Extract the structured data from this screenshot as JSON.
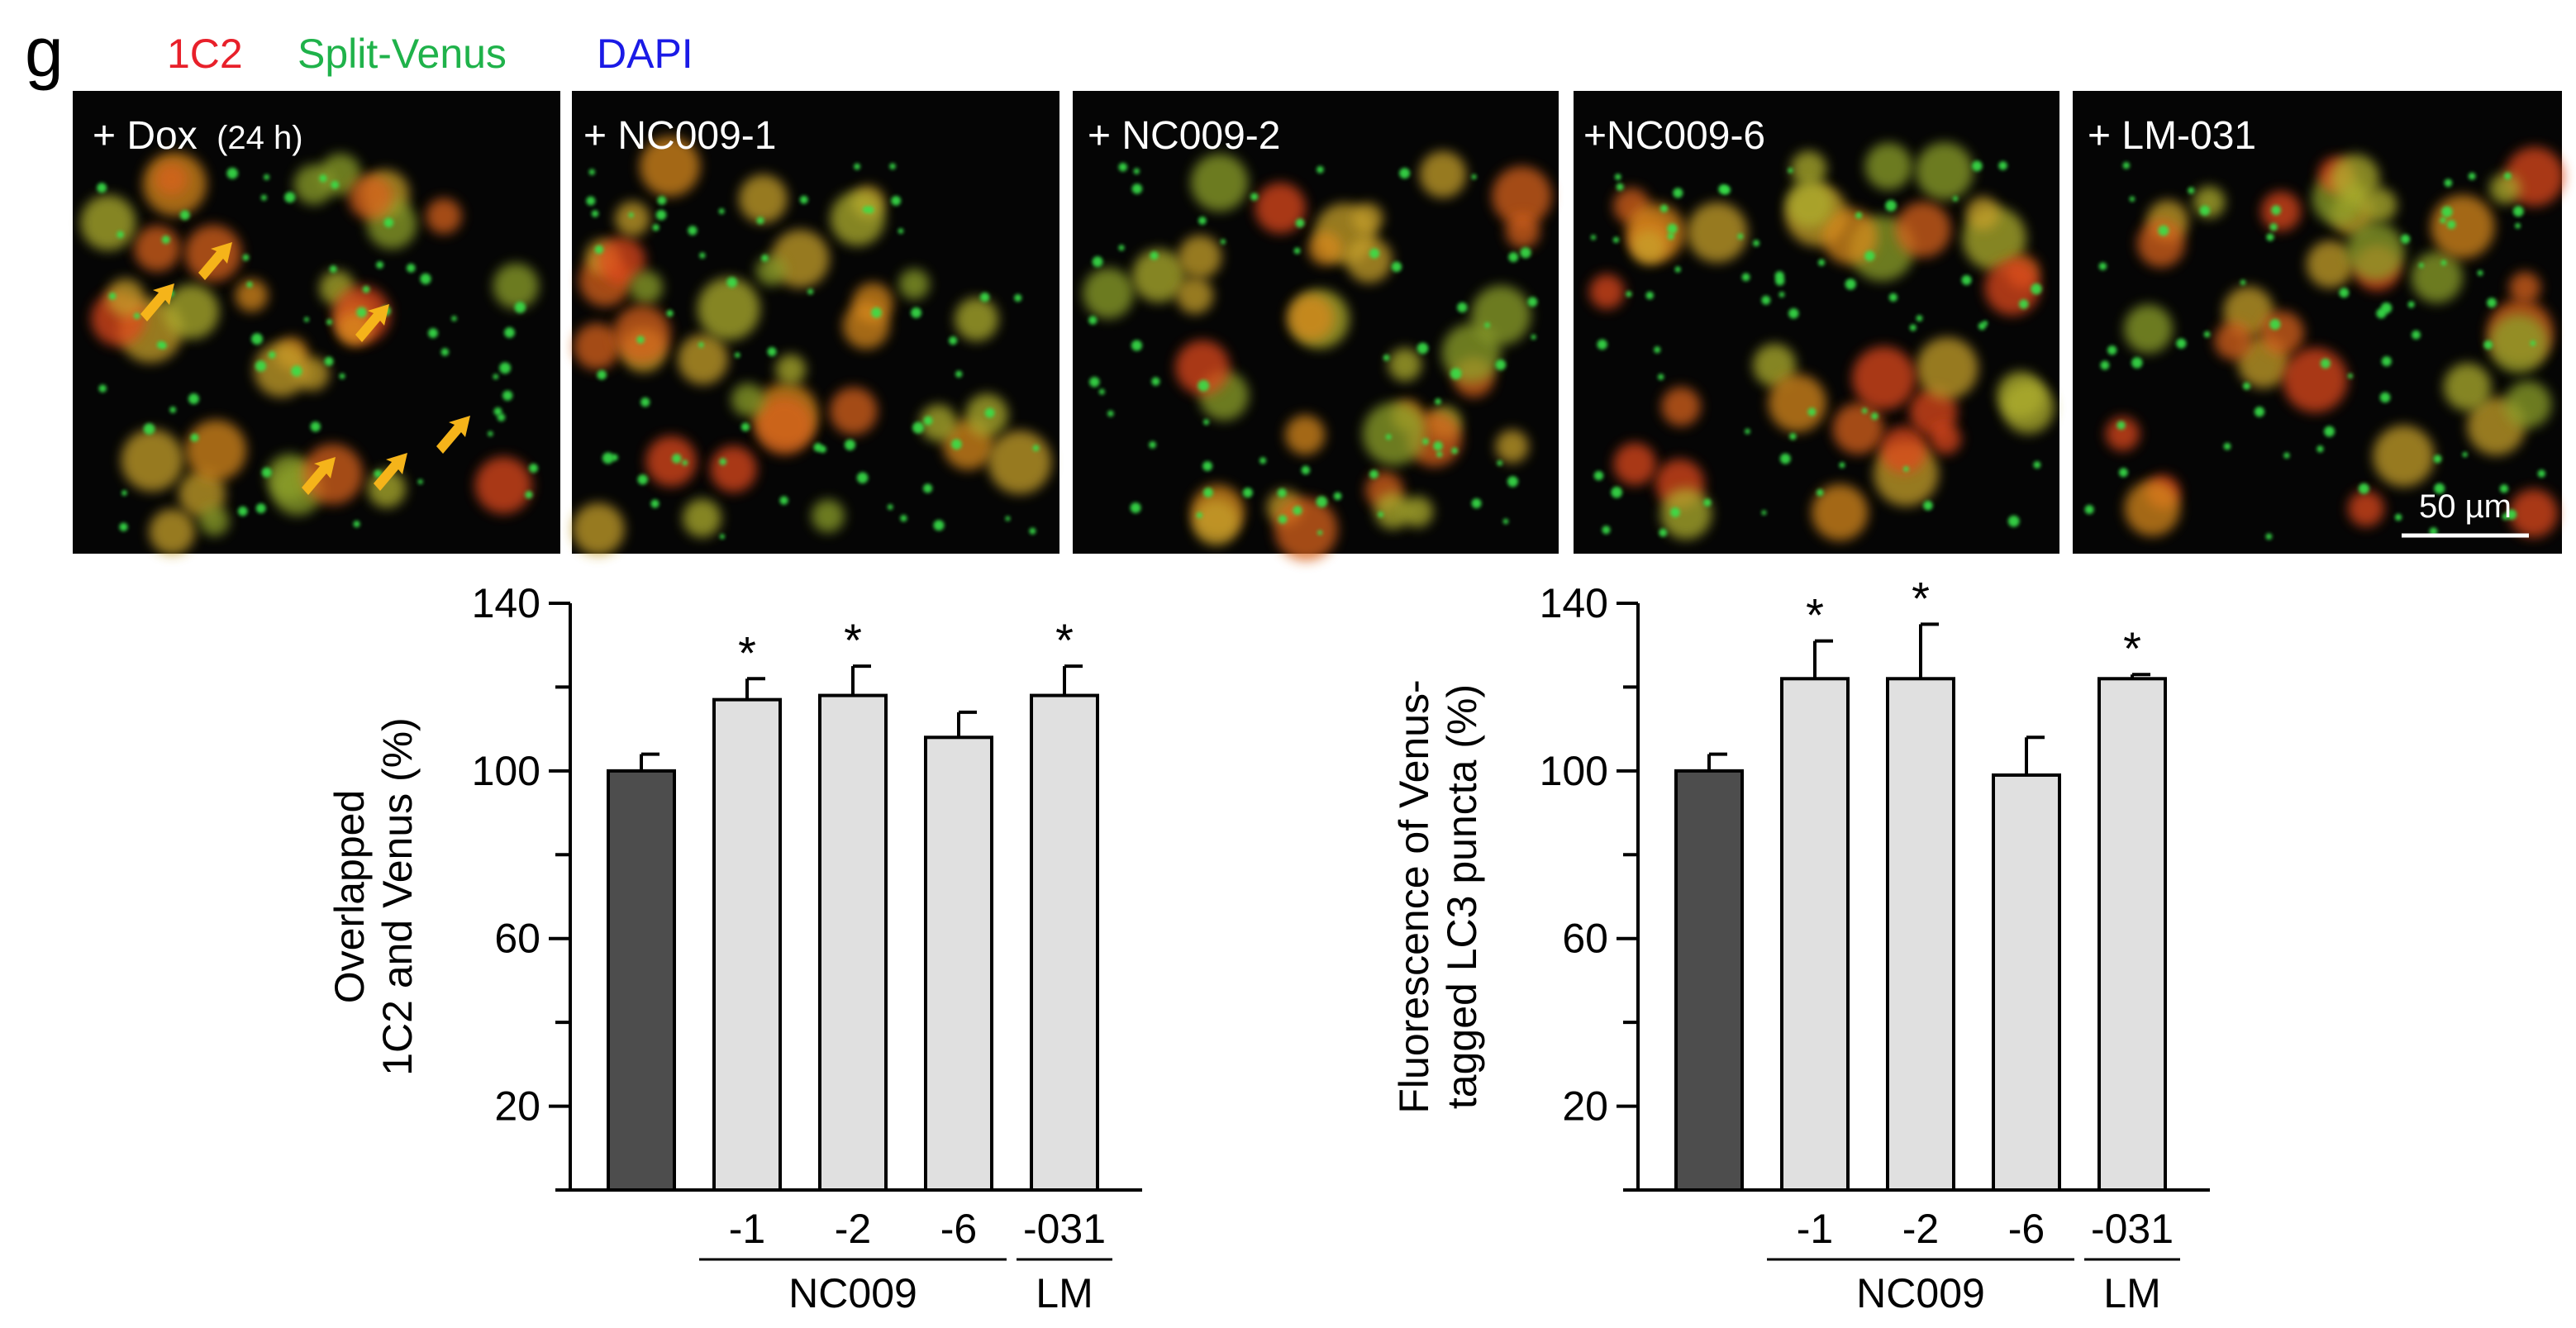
{
  "figure": {
    "panel_letter": "g",
    "legend": [
      {
        "label": "1C2",
        "color": "#e8202a"
      },
      {
        "label": "Split-Venus",
        "color": "#1fb24a"
      },
      {
        "label": "DAPI",
        "color": "#1a1ae6"
      }
    ],
    "micrographs": [
      {
        "label": "+ Dox",
        "sublabel": "(24 h)"
      },
      {
        "label": "+ NC009-1"
      },
      {
        "label": "+ NC009-2"
      },
      {
        "label": "+NC009-6"
      },
      {
        "label": "+ LM-031"
      }
    ],
    "scale_bar_label": "50 µm",
    "arrow_color": "#f5b41a"
  },
  "chart_data": [
    {
      "type": "bar",
      "ylabel": [
        "Overlapped",
        "1C2 and Venus (%)"
      ],
      "ylim": [
        0,
        140
      ],
      "yticks": [
        20,
        60,
        100,
        140
      ],
      "categories": [
        "",
        "-1",
        "-2",
        "-6",
        "-031"
      ],
      "values": [
        100,
        117,
        118,
        108,
        118
      ],
      "errors": [
        4,
        5,
        7,
        6,
        7
      ],
      "significant": [
        false,
        true,
        true,
        false,
        true
      ],
      "significance_marker": "*",
      "bar_colors": [
        "#4d4d4d",
        "#e0e0e0",
        "#e0e0e0",
        "#e0e0e0",
        "#e0e0e0"
      ],
      "groups": [
        {
          "label": "NC009",
          "span": [
            1,
            3
          ]
        },
        {
          "label": "LM",
          "span": [
            4,
            4
          ]
        }
      ]
    },
    {
      "type": "bar",
      "ylabel": [
        "Fluorescence of Venus-",
        "tagged LC3 puncta (%)"
      ],
      "ylim": [
        0,
        140
      ],
      "yticks": [
        20,
        60,
        100,
        140
      ],
      "categories": [
        "",
        "-1",
        "-2",
        "-6",
        "-031"
      ],
      "values": [
        100,
        122,
        122,
        99,
        122
      ],
      "errors": [
        4,
        9,
        13,
        9,
        1
      ],
      "significant": [
        false,
        true,
        true,
        false,
        true
      ],
      "significance_marker": "*",
      "bar_colors": [
        "#4d4d4d",
        "#e0e0e0",
        "#e0e0e0",
        "#e0e0e0",
        "#e0e0e0"
      ],
      "groups": [
        {
          "label": "NC009",
          "span": [
            1,
            3
          ]
        },
        {
          "label": "LM",
          "span": [
            4,
            4
          ]
        }
      ]
    }
  ]
}
